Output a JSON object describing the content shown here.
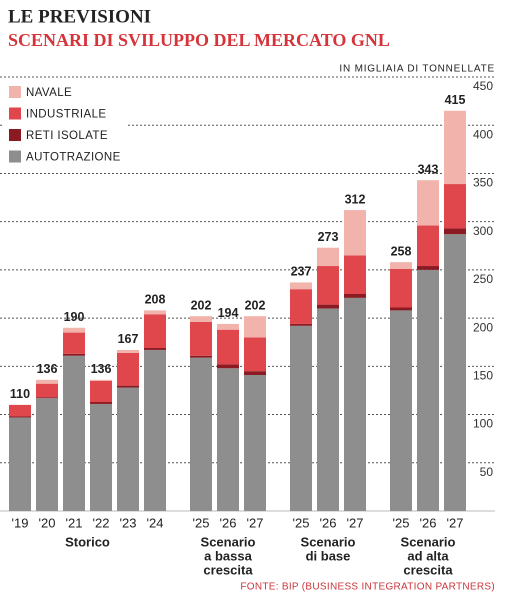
{
  "chart_data": {
    "type": "stacked-bar",
    "title": "LE PREVISIONI",
    "subtitle": "SCENARI DI SVILUPPO DEL MERCATO GNL",
    "unit_label": "IN MIGLIAIA DI TONNELLATE",
    "source": "FONTE: BIP (BUSINESS INTEGRATION PARTNERS)",
    "groups": [
      {
        "label": [
          "Storico"
        ],
        "categories": [
          "'19",
          "'20",
          "'21",
          "'22",
          "'23",
          "'24"
        ]
      },
      {
        "label": [
          "Scenario",
          "a bassa",
          "crescita"
        ],
        "categories": [
          "'25",
          "'26",
          "'27"
        ]
      },
      {
        "label": [
          "Scenario",
          "di base"
        ],
        "categories": [
          "'25",
          "'26",
          "'27"
        ]
      },
      {
        "label": [
          "Scenario",
          "ad alta",
          "crescita"
        ],
        "categories": [
          "'25",
          "'26",
          "'27"
        ]
      }
    ],
    "series": [
      {
        "name": "AUTOTRAZIONE",
        "color": "#8e8e8e",
        "values": [
          97,
          117,
          161,
          111,
          128,
          167,
          159,
          148,
          141,
          192,
          210,
          221,
          208,
          250,
          287
        ]
      },
      {
        "name": "RETI ISOLATE",
        "color": "#8b1a22",
        "values": [
          1,
          1,
          2,
          2,
          2,
          2,
          2,
          4,
          4,
          2,
          4,
          4,
          3,
          4,
          6
        ]
      },
      {
        "name": "INDUSTRIALE",
        "color": "#e0474c",
        "values": [
          12,
          14,
          22,
          22,
          34,
          35,
          35,
          36,
          35,
          36,
          40,
          40,
          40,
          42,
          46
        ]
      },
      {
        "name": "NAVALE",
        "color": "#f1b3ab",
        "values": [
          0,
          4,
          5,
          1,
          3,
          4,
          6,
          6,
          22,
          7,
          19,
          47,
          7,
          47,
          76
        ]
      }
    ],
    "totals": [
      110,
      136,
      190,
      136,
      167,
      208,
      202,
      194,
      202,
      237,
      273,
      312,
      258,
      343,
      415
    ],
    "ylim": [
      0,
      450
    ],
    "yticks": [
      50,
      100,
      150,
      200,
      250,
      300,
      350,
      400,
      450
    ],
    "grid": true,
    "legend": "top-left"
  }
}
